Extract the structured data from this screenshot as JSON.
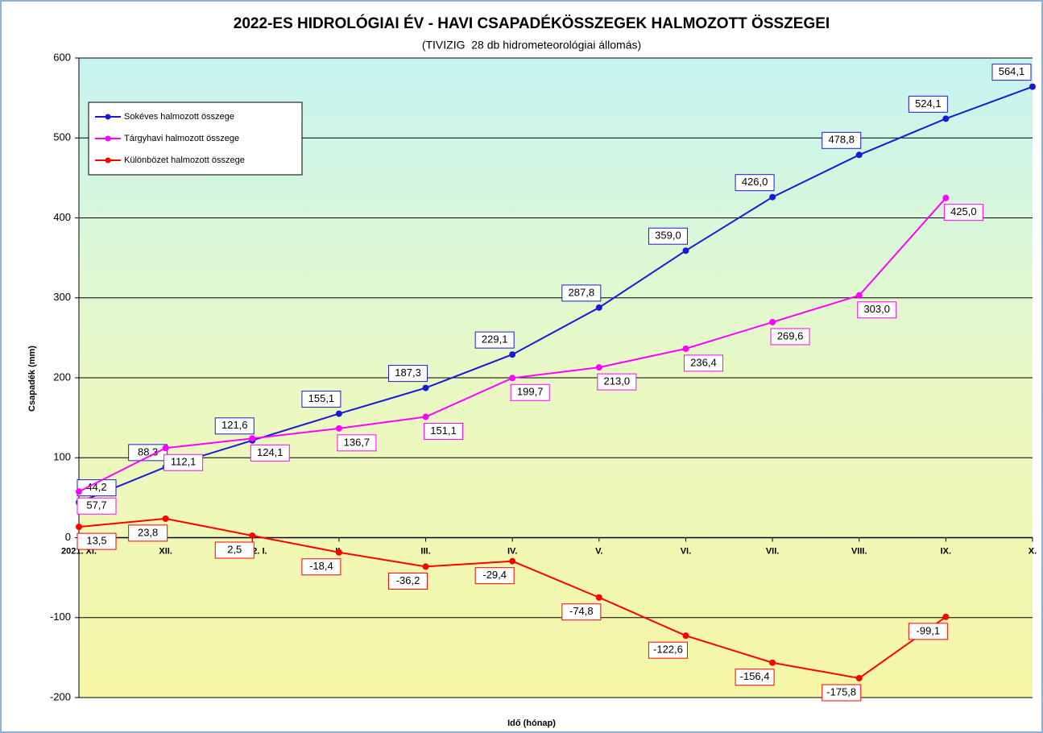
{
  "chart_data": {
    "type": "line",
    "title": "2022-ES HIDROLÓGIAI ÉV - HAVI CSAPADÉKÖSSZEGEK HALMOZOTT ÖSSZEGEI",
    "subtitle": "(TIVIZIG  28 db hidrometeorológiai állomás)",
    "x_label": "Idő (hónap)",
    "y_label": "Csapadék (mm)",
    "categories": [
      "2021. XI.",
      "XII.",
      "2022. I.",
      "II.",
      "III.",
      "IV.",
      "V.",
      "VI.",
      "VII.",
      "VIII.",
      "IX.",
      "X."
    ],
    "series": [
      {
        "name": "Sokéves halmozott összege",
        "color": "#1a1ad6",
        "values": [
          44.2,
          88.3,
          121.6,
          155.1,
          187.3,
          229.1,
          287.8,
          359.0,
          426.0,
          478.8,
          524.1,
          564.1
        ],
        "value_labels": [
          "44,2",
          "88,3",
          "121,6",
          "155,1",
          "187,3",
          "229,1",
          "287,8",
          "359,0",
          "426,0",
          "478,8",
          "524,1",
          "564,1"
        ]
      },
      {
        "name": "Tárgyhavi halmozott összege",
        "color": "#ff00ff",
        "values": [
          57.7,
          112.1,
          124.1,
          136.7,
          151.1,
          199.7,
          213.0,
          236.4,
          269.6,
          303.0,
          425.0,
          null
        ],
        "value_labels": [
          "57,7",
          "112,1",
          "124,1",
          "136,7",
          "151,1",
          "199,7",
          "213,0",
          "236,4",
          "269,6",
          "303,0",
          "425,0",
          null
        ]
      },
      {
        "name": "Különbözet halmozott összege",
        "color": "#ff0000",
        "values": [
          13.5,
          23.8,
          2.5,
          -18.4,
          -36.2,
          -29.4,
          -74.8,
          -122.6,
          -156.4,
          -175.8,
          -99.1,
          null
        ],
        "value_labels": [
          "13,5",
          "23,8",
          "2,5",
          "-18,4",
          "-36,2",
          "-29,4",
          "-74,8",
          "-122,6",
          "-156,4",
          "-175,8",
          "-99,1",
          null
        ]
      }
    ],
    "ylim": [
      -200,
      600
    ],
    "yticks": [
      -200,
      -100,
      0,
      100,
      200,
      300,
      400,
      500,
      600
    ],
    "grid": true,
    "legend": "upper left"
  }
}
